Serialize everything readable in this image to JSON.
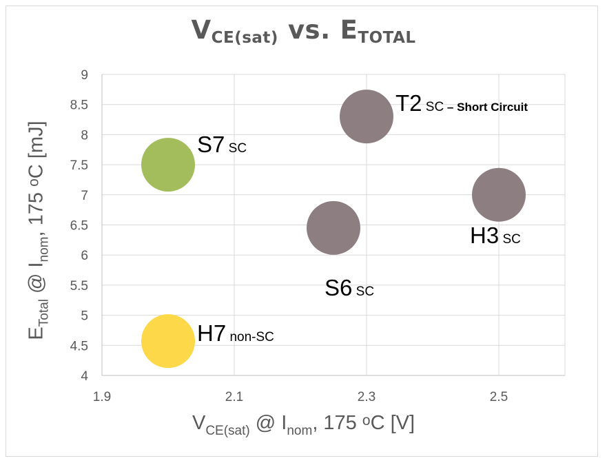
{
  "chart_data": {
    "type": "scatter",
    "title": {
      "main": "V",
      "main_sub": "CE(sat)",
      "mid": "vs.",
      "end": "E",
      "end_sub": "TOTAL"
    },
    "xlabel": {
      "a": "V",
      "sub": "CE(sat)",
      "b": " @ I",
      "sub2": "nom",
      "c": ", 175 ",
      "sup": "o",
      "d": "C [V]"
    },
    "ylabel": {
      "a": "E",
      "sub": "Total",
      "b": " @ I",
      "sub2": "nom",
      "c": ", 175 ",
      "sup": "o",
      "d": "C [mJ]"
    },
    "xlim": [
      1.9,
      2.6
    ],
    "ylim": [
      4,
      9
    ],
    "x_ticks": [
      "1.9",
      "2.1",
      "2.3",
      "2.5"
    ],
    "y_ticks": [
      "4",
      "4.5",
      "5",
      "5.5",
      "6",
      "6.5",
      "7",
      "7.5",
      "8",
      "8.5",
      "9"
    ],
    "grid": "vertical-and-horizontal",
    "points": [
      {
        "name": "T2",
        "x": 2.3,
        "y": 8.3,
        "color": "#8c7e81",
        "label": {
          "main": "T2",
          "small": " SC",
          "bold": " – Short Circuit"
        }
      },
      {
        "name": "S7",
        "x": 2.0,
        "y": 7.5,
        "color": "#a3bd5d",
        "label": {
          "main": "S7",
          "small": " SC"
        }
      },
      {
        "name": "H3",
        "x": 2.5,
        "y": 7.0,
        "color": "#8c7e81",
        "label": {
          "main": "H3",
          "small": " SC"
        }
      },
      {
        "name": "S6",
        "x": 2.25,
        "y": 6.45,
        "color": "#8c7e81",
        "label": {
          "main": "S6",
          "small": " SC"
        }
      },
      {
        "name": "H7",
        "x": 2.0,
        "y": 4.57,
        "color": "#fdd94a",
        "label": {
          "main": "H7",
          "small": " non-SC"
        }
      }
    ]
  }
}
